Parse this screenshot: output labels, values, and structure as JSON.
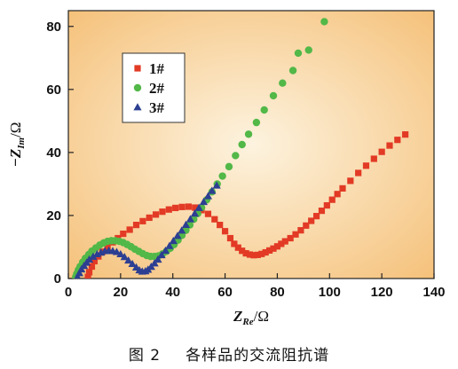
{
  "chart_data": {
    "type": "scatter",
    "title": "",
    "xlabel": {
      "main": "Z",
      "sub": "Re",
      "unit": "/Ω"
    },
    "ylabel": {
      "main": "−Z",
      "sub": "Im",
      "unit": "/Ω"
    },
    "xlim": [
      0,
      140
    ],
    "ylim": [
      0,
      85
    ],
    "xticks": [
      0,
      20,
      40,
      60,
      80,
      100,
      120,
      140
    ],
    "yticks": [
      0,
      20,
      40,
      60,
      80
    ],
    "grid": false,
    "legend_position": "top-left",
    "background": {
      "center": "#fdf3df",
      "edge": "#f5c078"
    },
    "series": [
      {
        "name": "1#",
        "marker": "square",
        "color": "#e23a25",
        "x": [
          7.5,
          8,
          9,
          10,
          11.5,
          13,
          15,
          17,
          19,
          21,
          23.5,
          26,
          28.5,
          31,
          33.5,
          36,
          38.5,
          41,
          43.5,
          46,
          48.5,
          51,
          53.5,
          56,
          58,
          60,
          62,
          63.5,
          65,
          66.5,
          68,
          69.5,
          71,
          72.5,
          74,
          75.5,
          77,
          78.5,
          80,
          81.5,
          83,
          85,
          87,
          89,
          91,
          93,
          95,
          97,
          99,
          101,
          103,
          105,
          108,
          111,
          114,
          117,
          120,
          123,
          126,
          129
        ],
        "y": [
          0.5,
          2,
          3.8,
          5.5,
          7,
          8.5,
          10,
          11.5,
          12.8,
          14.2,
          15.5,
          17,
          18.2,
          19.3,
          20.3,
          21.2,
          21.9,
          22.4,
          22.7,
          22.8,
          22.5,
          21.7,
          20.5,
          18.8,
          17,
          15,
          12.8,
          11,
          9.8,
          8.8,
          8,
          7.6,
          7.4,
          7.5,
          7.8,
          8.3,
          8.9,
          9.5,
          10.2,
          11,
          11.8,
          12.8,
          14,
          15.3,
          16.8,
          18.3,
          19.8,
          21.5,
          23.2,
          25,
          26.8,
          28.6,
          31,
          33.5,
          35.8,
          38,
          40.2,
          42.2,
          44,
          45.7
        ]
      },
      {
        "name": "2#",
        "marker": "circle",
        "color": "#52b848",
        "x": [
          2.8,
          3.2,
          3.8,
          4.5,
          5.5,
          6.5,
          7.8,
          9,
          10.5,
          12,
          13.5,
          15,
          16.5,
          18,
          19.5,
          21,
          22.5,
          24,
          25.5,
          27,
          28.5,
          30,
          31.5,
          33,
          34.5,
          36,
          37.5,
          39,
          40.5,
          42,
          43.5,
          45,
          46.5,
          48,
          49.5,
          51,
          53,
          55,
          57,
          59,
          61.5,
          64,
          66.5,
          69,
          72,
          75,
          78.5,
          82,
          86,
          88,
          92,
          98
        ],
        "y": [
          0.5,
          1.5,
          2.7,
          3.8,
          5.2,
          6.4,
          7.6,
          8.7,
          9.7,
          10.6,
          11.3,
          11.8,
          12,
          12,
          11.8,
          11.4,
          10.8,
          10.1,
          9.3,
          8.6,
          7.9,
          7.3,
          7,
          7,
          7.2,
          7.8,
          8.6,
          9.6,
          10.8,
          12.2,
          13.7,
          15.3,
          17,
          18.8,
          20.6,
          22.5,
          25,
          27.5,
          30,
          32.5,
          35.5,
          39,
          42.5,
          45.8,
          49.5,
          53.5,
          58,
          62,
          66,
          71.5,
          72.5,
          81.5
        ]
      },
      {
        "name": "3#",
        "marker": "triangle",
        "color": "#2d3f92",
        "x": [
          3.5,
          4.2,
          5,
          6,
          7,
          8,
          9.5,
          11,
          12.5,
          14,
          15.5,
          17,
          18.5,
          20,
          21.5,
          23,
          24.5,
          26,
          27.2,
          28.3,
          29.5,
          30.5,
          31.7,
          33,
          34.3,
          35.7,
          37.2,
          38.7,
          40.2,
          41.8,
          43.4,
          45,
          46.7,
          48.4,
          50,
          51.8,
          53.5,
          55,
          56.8
        ],
        "y": [
          0.5,
          1.7,
          2.9,
          4,
          5,
          6,
          6.9,
          7.7,
          8.2,
          8.7,
          8.8,
          8.7,
          8.4,
          7.7,
          6.8,
          5.7,
          4.6,
          3.5,
          2.6,
          2.2,
          2.3,
          2.8,
          3.7,
          4.8,
          6,
          7.4,
          8.8,
          10.3,
          11.9,
          13.5,
          15.2,
          17,
          18.8,
          20.6,
          22.4,
          24.3,
          26.1,
          27.8,
          29.5
        ]
      }
    ]
  },
  "caption": {
    "number": "图 2",
    "text": "各样品的交流阻抗谱"
  }
}
